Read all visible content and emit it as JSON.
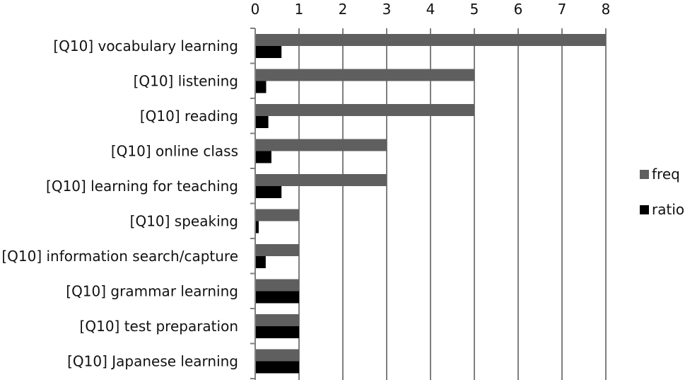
{
  "chart_data": {
    "type": "bar",
    "orientation": "horizontal",
    "xlim": [
      0,
      8
    ],
    "ticks": [
      0,
      1,
      2,
      3,
      4,
      5,
      6,
      7,
      8
    ],
    "grid": "vertical",
    "axis_position": "top",
    "legend_position": "right",
    "categories": [
      "[Q10] vocabulary learning",
      "[Q10] listening",
      "[Q10] reading",
      "[Q10] online class",
      "[Q10] learning for teaching",
      "[Q10] speaking",
      "[Q10] information search/capture",
      "[Q10] grammar learning",
      "[Q10] test preparation",
      "[Q10] Japanese learning"
    ],
    "series": [
      {
        "name": "freq",
        "color": "#5f5f5f",
        "values": [
          8,
          5,
          5,
          3,
          3,
          1,
          1,
          1,
          1,
          1
        ]
      },
      {
        "name": "ratio",
        "color": "#000000",
        "values": [
          0.6,
          0.25,
          0.3,
          0.37,
          0.6,
          0.08,
          0.24,
          1,
          1,
          1
        ]
      }
    ]
  }
}
